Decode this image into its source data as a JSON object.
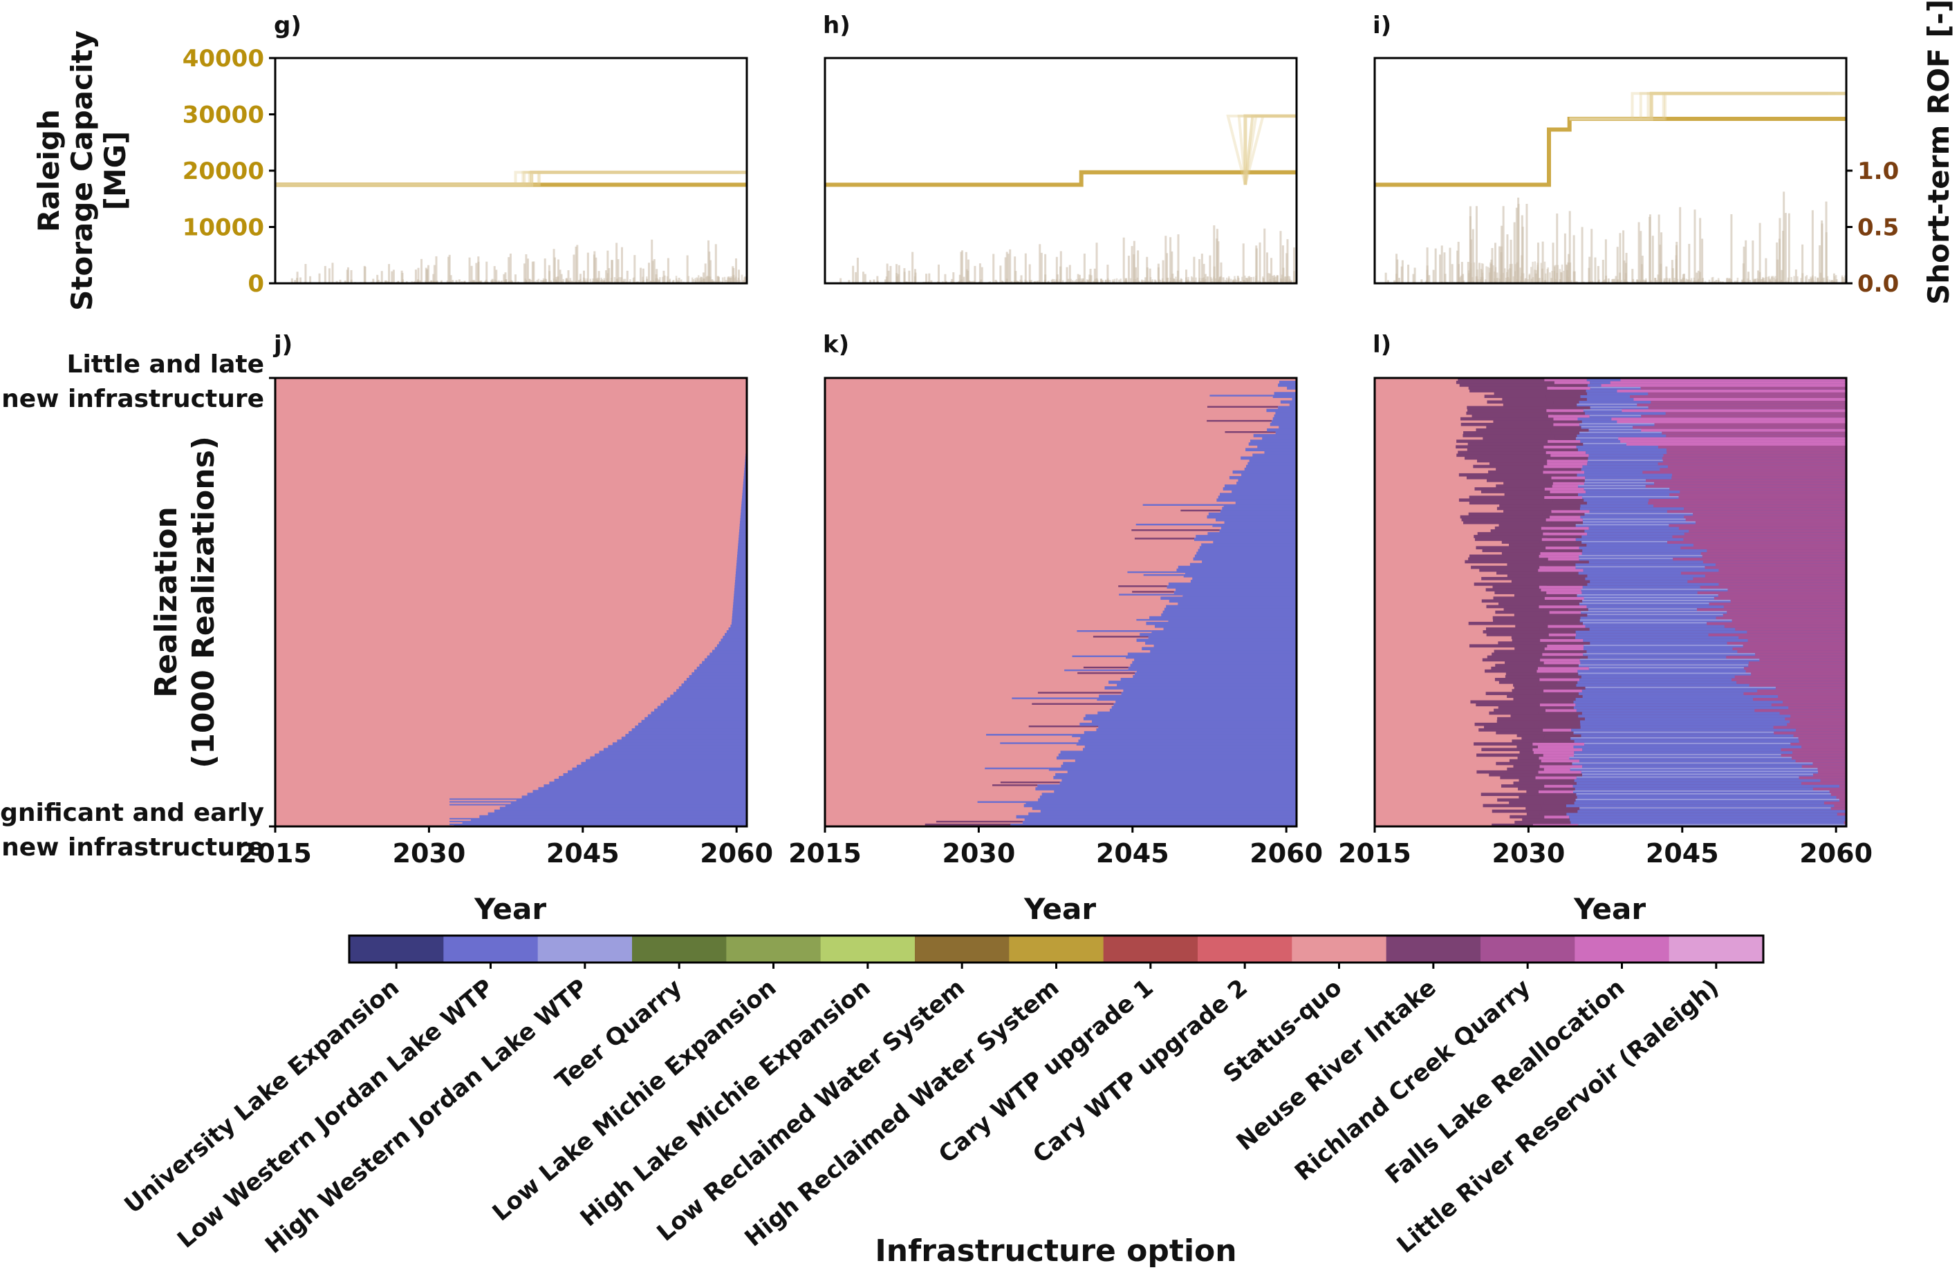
{
  "figure_colors": {
    "storage": "#c9a43c",
    "storage_faint": "#e3cf94",
    "rof": "#a08866",
    "rof_axis": "#7a3e10",
    "storage_axis": "#b8900c"
  },
  "chart_data": [
    {
      "type": "line",
      "panel": "g)",
      "series": [
        {
          "axis": "left",
          "x": [
            2015,
            2061
          ],
          "y": [
            17500,
            17500
          ]
        },
        {
          "axis": "left",
          "x": [
            2015,
            2040,
            2040,
            2061
          ],
          "y": [
            17500,
            17500,
            19700,
            19700
          ]
        }
      ],
      "ylabel": "Raleigh\nStorage Capacity\n[MG]",
      "yticks": [
        "0",
        "10000",
        "20000",
        "30000",
        "40000"
      ],
      "ylim": [
        0,
        40000
      ],
      "rof_ylim": [
        0,
        2.0
      ],
      "rof_max_spike": 0.45,
      "xlim": [
        2015,
        2061
      ]
    },
    {
      "type": "line",
      "panel": "h)",
      "series": [
        {
          "axis": "left",
          "x": [
            2015,
            2040,
            2040,
            2061
          ],
          "y": [
            17500,
            17500,
            19700,
            19700
          ]
        },
        {
          "axis": "left",
          "x": [
            2056,
            2056,
            2061
          ],
          "y": [
            17500,
            29700,
            29700
          ]
        }
      ],
      "ylim": [
        0,
        40000
      ],
      "rof_ylim": [
        0,
        2.0
      ],
      "rof_max_spike": 0.6,
      "xlim": [
        2015,
        2061
      ]
    },
    {
      "type": "line",
      "panel": "i)",
      "series": [
        {
          "axis": "left",
          "x": [
            2015,
            2032,
            2032,
            2034,
            2034,
            2061
          ],
          "y": [
            17500,
            17500,
            27300,
            27300,
            29200,
            29200
          ]
        },
        {
          "axis": "left",
          "x": [
            2034,
            2042,
            2042,
            2061
          ],
          "y": [
            29200,
            29200,
            33700,
            33700
          ]
        }
      ],
      "y2label": "Short-term ROF [-]",
      "y2ticks": [
        "0.0",
        "0.5",
        "1.0"
      ],
      "ylim": [
        0,
        40000
      ],
      "rof_ylim": [
        0,
        2.0
      ],
      "rof_max_spike": 0.9,
      "xlim": [
        2015,
        2061
      ]
    },
    {
      "type": "heatmap",
      "panel": "j)",
      "ylabel": "Realization\n(1000 Realizations)",
      "ytick_top": "Little and late\nnew infrastructure",
      "ytick_bottom": "Significant and early\nnew infrastructure",
      "xlabel": "Year",
      "xticks": [
        "2015",
        "2030",
        "2045",
        "2060"
      ],
      "xlim": [
        2015,
        2061
      ],
      "base_option": "Status-quo",
      "front_option": "Low Western Jordan Lake WTP",
      "front_curve": {
        "realization": [
          0,
          30,
          100,
          200,
          300,
          400,
          450,
          1000
        ],
        "year": [
          2032,
          2036,
          2042,
          2049,
          2054,
          2058,
          2059.5,
          2061.5
        ]
      }
    },
    {
      "type": "heatmap",
      "panel": "k)",
      "xlabel": "Year",
      "xticks": [
        "2015",
        "2030",
        "2045",
        "2060"
      ],
      "xlim": [
        2015,
        2061
      ],
      "base_option": "Status-quo",
      "front_option": "Low Western Jordan Lake WTP",
      "front_curve": {
        "realization": [
          0,
          100,
          200,
          300,
          400,
          500,
          600,
          700,
          800,
          900,
          1000
        ],
        "year": [
          2034,
          2037,
          2040,
          2043,
          2046,
          2048.5,
          2051,
          2053.5,
          2056,
          2058.5,
          2060.5
        ]
      }
    },
    {
      "type": "heatmap",
      "panel": "l)",
      "xlabel": "Year",
      "xticks": [
        "2015",
        "2030",
        "2045",
        "2060"
      ],
      "xlim": [
        2015,
        2061
      ],
      "options_order": [
        "Status-quo",
        "Neuse River Intake",
        "Falls Lake Reallocation",
        "Low Western Jordan Lake WTP",
        "Richland Creek Quarry"
      ],
      "transitions_curve": {
        "realization": [
          0,
          200,
          400,
          600,
          800,
          1000
        ],
        "neuse_start": [
          2027.5,
          2027,
          2026.5,
          2026,
          2025.5,
          2025
        ],
        "falls_start": [
          2031,
          2031,
          2031.5,
          2031.5,
          2032,
          2032
        ],
        "jordan_start": [
          2034,
          2034.5,
          2035,
          2035,
          2035,
          2035
        ],
        "richland_start": [
          2061.5,
          2055,
          2050,
          2046,
          2042,
          2041
        ]
      }
    }
  ],
  "colorbar": {
    "label": "Infrastructure option",
    "options": [
      {
        "name": "University Lake Expansion",
        "color": "#3b3b7e"
      },
      {
        "name": "Low Western Jordan Lake WTP",
        "color": "#6b6ecf"
      },
      {
        "name": "High Western Jordan Lake WTP",
        "color": "#9c9ede"
      },
      {
        "name": "Teer Quarry",
        "color": "#637939"
      },
      {
        "name": "Low Lake Michie Expansion",
        "color": "#8ca252"
      },
      {
        "name": "High Lake Michie Expansion",
        "color": "#b5cf6b"
      },
      {
        "name": "Low Reclaimed Water System",
        "color": "#8c6d31"
      },
      {
        "name": "High Reclaimed Water System",
        "color": "#bd9e39"
      },
      {
        "name": "Cary WTP upgrade 1",
        "color": "#ad494a"
      },
      {
        "name": "Cary WTP upgrade 2",
        "color": "#d6616b"
      },
      {
        "name": "Status-quo",
        "color": "#e7969c"
      },
      {
        "name": "Neuse River Intake",
        "color": "#7b4173"
      },
      {
        "name": "Richland Creek Quarry",
        "color": "#a55194"
      },
      {
        "name": "Falls Lake Reallocation",
        "color": "#ce6dbd"
      },
      {
        "name": "Little River Reservoir (Raleigh)",
        "color": "#de9ed6"
      }
    ]
  }
}
